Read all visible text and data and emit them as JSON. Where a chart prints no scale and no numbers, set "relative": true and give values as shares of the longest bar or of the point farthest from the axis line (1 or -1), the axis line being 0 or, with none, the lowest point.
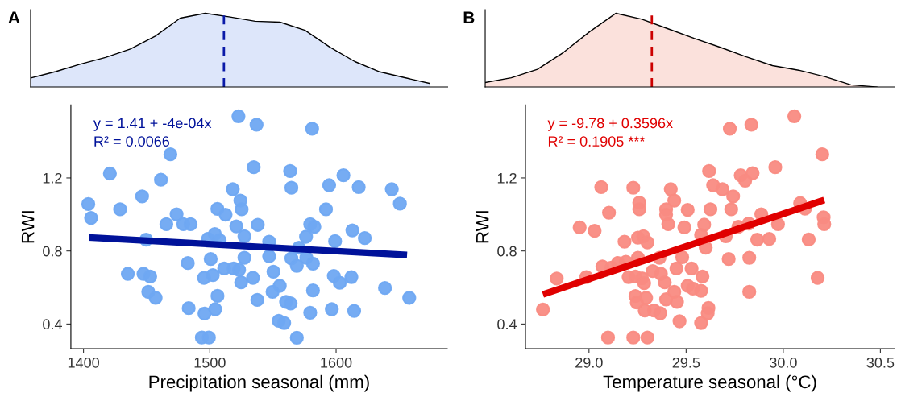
{
  "chart_data": [
    {
      "type": "area",
      "title": "A",
      "relative": true,
      "tick_labels": false,
      "categories": [
        null,
        null,
        null,
        null,
        null,
        null,
        null,
        null,
        null,
        null,
        null,
        null,
        null,
        null,
        null,
        null,
        null
      ],
      "series": [
        {
          "color": "#dde6fa",
          "values": [
            0.122,
            0.208,
            0.31,
            0.4,
            0.515,
            0.69,
            0.935,
            1.0,
            0.95,
            0.893,
            0.88,
            0.77,
            0.54,
            0.345,
            0.205,
            0.126,
            0.049
          ]
        }
      ]
    },
    {
      "type": "scatter",
      "xlabel": "Precipitation seasonal (mm)",
      "ylabel": "RWI",
      "xlim": [
        1390,
        1688
      ],
      "ylim": [
        0.265,
        1.6
      ],
      "xticks": [
        1400,
        1500,
        1600
      ],
      "yticks": [
        0.4,
        0.8,
        1.2
      ],
      "grid": false,
      "annotations": [
        "y = 1.41 + -4e-04x",
        "R² = 0.0066"
      ],
      "series": [
        {
          "type": "scatter",
          "marker": "circle",
          "color": "#6fa8f2",
          "x": [
            1522.7,
            1537,
            1468.8,
            1420.9,
            1534.8,
            1461.3,
            1403.8,
            1446.4,
            1406,
            1429,
            1518.2,
            1524.2,
            1506,
            1512.5,
            1525.2,
            1521,
            1473.7,
            1465.6,
            1479,
            1484.8,
            1449.6,
            1498.6,
            1504,
            1507.8,
            1527.4,
            1482.6,
            1500.7,
            1527.4,
            1511.4,
            1518.9,
            1523.2,
            1435.1,
            1447.5,
            1452.8,
            1495.4,
            1502.4,
            1524.8,
            1534.2,
            1451.3,
            1457.1,
            1506.1,
            1483.3,
            1504.3,
            1495.8,
            1493.7,
            1499.3,
            1537.6,
            1538,
            1581,
            1563.6,
            1564.6,
            1605.8,
            1594.5,
            1617.9,
            1644.1,
            1650.5,
            1592,
            1579.5,
            1582.8,
            1576.2,
            1612.9,
            1622.7,
            1599.2,
            1547,
            1570.6,
            1547,
            1564.6,
            1576.4,
            1568.9,
            1581.7,
            1550.4,
            1598.2,
            1602.9,
            1612.1,
            1555.4,
            1549.7,
            1581.7,
            1638.7,
            1657.9,
            1560.4,
            1564,
            1579.5,
            1596.6,
            1614.3,
            1554.6,
            1558.9,
            1568.9
          ],
          "values": [
            1.538,
            1.491,
            1.329,
            1.224,
            1.259,
            1.19,
            1.057,
            1.099,
            0.981,
            1.028,
            1.138,
            1.076,
            1.031,
            0.999,
            1.028,
            0.935,
            1.001,
            0.947,
            0.947,
            0.947,
            0.862,
            0.866,
            0.893,
            0.859,
            0.881,
            0.734,
            0.756,
            0.763,
            0.704,
            0.704,
            0.697,
            0.675,
            0.675,
            0.66,
            0.653,
            0.668,
            0.628,
            0.653,
            0.576,
            0.543,
            0.554,
            0.487,
            0.481,
            0.457,
            0.326,
            0.326,
            0.532,
            0.943,
            1.469,
            1.238,
            1.146,
            1.215,
            1.16,
            1.15,
            1.138,
            1.059,
            1.028,
            0.947,
            0.932,
            0.878,
            0.913,
            0.871,
            0.854,
            0.851,
            0.818,
            0.771,
            0.759,
            0.763,
            0.719,
            0.731,
            0.687,
            0.663,
            0.626,
            0.657,
            0.609,
            0.576,
            0.584,
            0.597,
            0.543,
            0.521,
            0.513,
            0.462,
            0.481,
            0.472,
            0.418,
            0.406,
            0.325
          ]
        },
        {
          "type": "line",
          "color": "#00129a",
          "x": [
            1404.3,
            1656.2
          ],
          "values": [
            0.874,
            0.778
          ]
        }
      ]
    },
    {
      "type": "area",
      "title": "B",
      "relative": true,
      "tick_labels": false,
      "categories": [
        null,
        null,
        null,
        null,
        null,
        null,
        null,
        null,
        null,
        null,
        null,
        null,
        null,
        null,
        null,
        null
      ],
      "series": [
        {
          "color": "#fbe1dc",
          "values": [
            0.061,
            0.125,
            0.24,
            0.47,
            0.75,
            1.0,
            0.92,
            0.79,
            0.66,
            0.539,
            0.41,
            0.29,
            0.228,
            0.141,
            0.03,
            0.0
          ]
        }
      ]
    },
    {
      "type": "scatter",
      "xlabel": "Temperature seasonal (°C)",
      "ylabel": "RWI",
      "xlim": [
        28.673,
        30.573
      ],
      "ylim": [
        0.265,
        1.6
      ],
      "xticks": [
        {
          "value": 29,
          "label": "29.0"
        },
        29.5,
        {
          "value": 30,
          "label": "30.0"
        },
        30.5
      ],
      "yticks": [
        0.4,
        0.8,
        1.2
      ],
      "grid": false,
      "annotations": [
        "y = -9.78 + 0.3596x",
        "R² = 0.1905 ***"
      ],
      "series": [
        {
          "type": "scatter",
          "marker": "circle",
          "color": "#f98b82",
          "x": [
            29.063,
            29.228,
            29.421,
            29.259,
            29.259,
            29.439,
            29.397,
            29.397,
            29.508,
            29.103,
            29.408,
            29.491,
            28.952,
            29.029,
            29.577,
            29.183,
            29.252,
            29.28,
            29.301,
            29.363,
            29.48,
            29.252,
            29.19,
            29.149,
            29.115,
            29.069,
            29.45,
            29.528,
            29.328,
            29.37,
            29.584,
            28.834,
            28.986,
            29.204,
            29.239,
            29.273,
            29.284,
            29.39,
            29.439,
            29.508,
            29.535,
            29.577,
            29.239,
            29.294,
            29.397,
            29.453,
            29.246,
            29.287,
            29.335,
            29.367,
            28.763,
            29.466,
            29.577,
            29.098,
            29.228,
            29.301,
            30.057,
            29.725,
            29.836,
            30.201,
            29.618,
            29.959,
            29.781,
            29.842,
            29.804,
            29.639,
            29.687,
            29.742,
            29.625,
            29.732,
            30.087,
            30.112,
            29.887,
            30.208,
            30.211,
            29.593,
            29.769,
            29.822,
            29.973,
            29.704,
            29.601,
            29.866,
            29.928,
            30.131,
            29.719,
            29.825,
            30.177,
            29.825,
            29.615,
            29.611
          ],
          "values": [
            1.15,
            1.146,
            1.138,
            1.065,
            1.028,
            1.076,
            1.028,
            0.999,
            1.025,
            1.01,
            0.947,
            0.929,
            0.929,
            0.91,
            0.888,
            0.851,
            0.873,
            0.881,
            0.847,
            0.763,
            0.766,
            0.763,
            0.741,
            0.734,
            0.709,
            0.715,
            0.704,
            0.704,
            0.69,
            0.675,
            0.66,
            0.649,
            0.657,
            0.657,
            0.66,
            0.65,
            0.624,
            0.628,
            0.576,
            0.609,
            0.594,
            0.582,
            0.553,
            0.543,
            0.535,
            0.521,
            0.518,
            0.474,
            0.474,
            0.459,
            0.479,
            0.415,
            0.406,
            0.326,
            0.326,
            0.326,
            1.538,
            1.469,
            1.491,
            1.329,
            1.238,
            1.259,
            1.215,
            1.226,
            1.185,
            1.16,
            1.138,
            1.099,
            1.028,
            1.028,
            1.062,
            1.032,
            1.001,
            0.984,
            0.947,
            0.944,
            0.932,
            0.95,
            0.947,
            0.881,
            0.818,
            0.862,
            0.866,
            0.863,
            0.756,
            0.763,
            0.653,
            0.576,
            0.488,
            0.459
          ]
        },
        {
          "type": "line",
          "color": "#e00000",
          "x": [
            28.763,
            30.211
          ],
          "values": [
            0.562,
            1.079
          ]
        }
      ]
    }
  ]
}
